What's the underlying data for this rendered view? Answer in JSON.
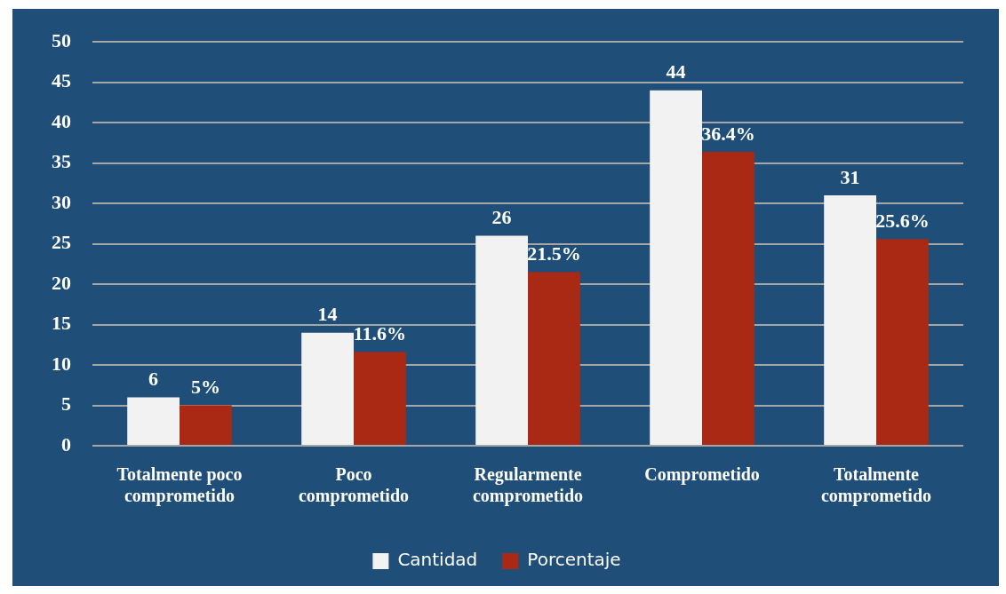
{
  "chart_data": {
    "type": "bar",
    "categories": [
      "Totalmente poco comprometido",
      "Poco comprometido",
      "Regularmente comprometido",
      "Comprometido",
      "Totalmente comprometido"
    ],
    "series": [
      {
        "name": "Cantidad",
        "color": "#f2f2f2",
        "values": [
          6,
          14,
          26,
          44,
          31
        ],
        "value_labels": [
          "6",
          "14",
          "26",
          "44",
          "31"
        ]
      },
      {
        "name": "Porcentaje",
        "color": "#a92914",
        "values": [
          5,
          11.6,
          21.5,
          36.4,
          25.6
        ],
        "value_labels": [
          "5%",
          "11.6%",
          "21.5%",
          "36.4%",
          "25.6%"
        ]
      }
    ],
    "ylim": [
      0,
      50
    ],
    "yticks": [
      0,
      5,
      10,
      15,
      20,
      25,
      30,
      35,
      40,
      45,
      50
    ],
    "grid": "y",
    "legend": "bottom"
  }
}
